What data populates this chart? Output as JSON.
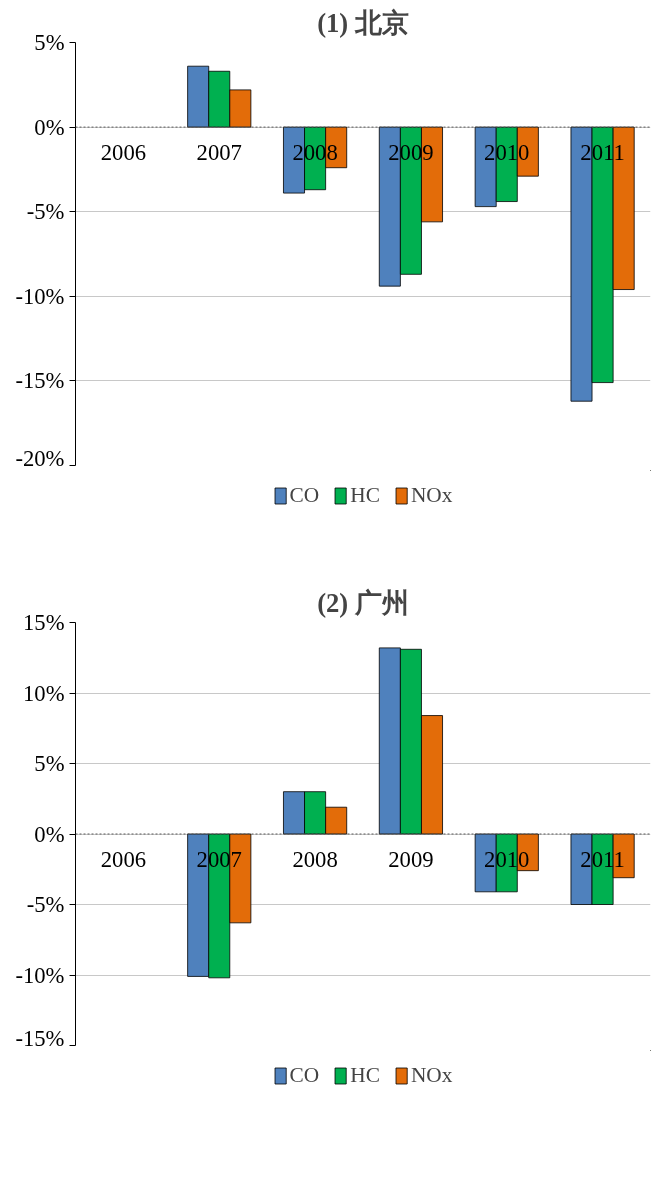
{
  "chart_data": [
    {
      "type": "bar",
      "title": "(1) 北京",
      "categories": [
        "2006",
        "2007",
        "2008",
        "2009",
        "2010",
        "2011"
      ],
      "series": [
        {
          "name": "CO",
          "color": "#4f81bd",
          "values": [
            null,
            3.6,
            -3.9,
            -9.4,
            -4.7,
            -16.2
          ]
        },
        {
          "name": "HC",
          "color": "#00b050",
          "values": [
            null,
            3.3,
            -3.7,
            -8.7,
            -4.4,
            -15.1
          ]
        },
        {
          "name": "NOx",
          "color": "#e36c09",
          "values": [
            null,
            2.2,
            -2.4,
            -5.6,
            -2.9,
            -9.6
          ]
        }
      ],
      "ylim": [
        -20,
        5
      ],
      "yticks": [
        {
          "value": -20,
          "label": "-20%"
        },
        {
          "value": -15,
          "label": "-15%"
        },
        {
          "value": -10,
          "label": "-10%"
        },
        {
          "value": -5,
          "label": "-5%"
        },
        {
          "value": 0,
          "label": "0%"
        },
        {
          "value": 5,
          "label": "5%"
        }
      ],
      "ref_lines": [
        {
          "axis": "y",
          "value": 0,
          "color": "#595959",
          "line_style": "dotted"
        }
      ],
      "grid": "y",
      "legend": "bottom"
    },
    {
      "type": "bar",
      "title": "(2) 广州",
      "categories": [
        "2006",
        "2007",
        "2008",
        "2009",
        "2010",
        "2011"
      ],
      "series": [
        {
          "name": "CO",
          "color": "#4f81bd",
          "values": [
            null,
            -10.1,
            3.0,
            13.2,
            -4.1,
            -5.0
          ]
        },
        {
          "name": "HC",
          "color": "#00b050",
          "values": [
            null,
            -10.2,
            3.0,
            13.1,
            -4.1,
            -5.0
          ]
        },
        {
          "name": "NOx",
          "color": "#e36c09",
          "values": [
            null,
            -6.3,
            1.9,
            8.4,
            -2.6,
            -3.1
          ]
        }
      ],
      "ylim": [
        -15,
        15
      ],
      "yticks": [
        {
          "value": -15,
          "label": "-15%"
        },
        {
          "value": -10,
          "label": "-10%"
        },
        {
          "value": -5,
          "label": "-5%"
        },
        {
          "value": 0,
          "label": "0%"
        },
        {
          "value": 5,
          "label": "5%"
        },
        {
          "value": 10,
          "label": "10%"
        },
        {
          "value": 15,
          "label": "15%"
        }
      ],
      "ref_lines": [
        {
          "axis": "y",
          "value": 0,
          "color": "#595959",
          "line_style": "dotted"
        }
      ],
      "grid": "y",
      "legend": "bottom"
    }
  ]
}
